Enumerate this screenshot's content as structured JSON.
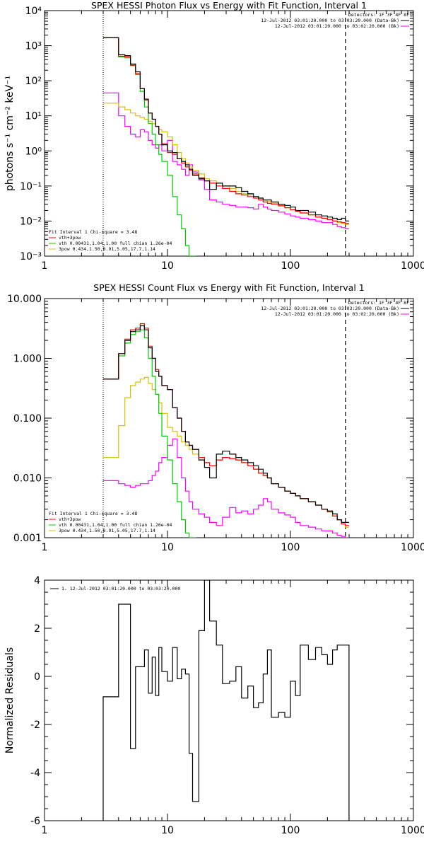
{
  "chart_data": [
    {
      "type": "line",
      "title": "SPEX HESSI Photon Flux vs Energy with Fit Function, Interval 1",
      "ylabel": "photons s⁻¹ cm⁻² keV⁻¹",
      "xlabel": "",
      "xscale": "log",
      "yscale": "log",
      "xlim": [
        1,
        1000
      ],
      "ylim": [
        0.001,
        10000
      ],
      "xticks": [
        "1",
        "10",
        "100",
        "1000"
      ],
      "yticks": [
        "10⁻³",
        "10⁻²",
        "10⁻¹",
        "10⁰",
        "10¹",
        "10²",
        "10³",
        "10⁴"
      ],
      "legend_tr": [
        "Detectors: 1F 3F 4F 8F",
        "12-Jul-2012 03:01:20.000 to 03:03:20.000 (Data-Bk)",
        "12-Jul-2012 03:01:20.000 to 03:02:20.000 (Bk)"
      ],
      "legend_bl": [
        "Fit Interval 1   Chi-square = 3.48",
        "vth+3pow",
        "vth 0.00431,1.04,1.00  full chian 1.26e-04",
        "3pow 0.434,1.50,8.91,5.05,17.7,1.14"
      ],
      "vlines": [
        3.0,
        280
      ],
      "series": [
        {
          "name": "Data-Bk",
          "color": "#000000",
          "x": [
            3,
            3.5,
            4,
            4.5,
            5,
            5.5,
            6,
            6.5,
            7,
            7.5,
            8,
            8.5,
            9,
            10,
            11,
            12,
            13,
            14,
            15,
            16,
            18,
            20,
            22,
            25,
            28,
            32,
            36,
            40,
            45,
            50,
            55,
            60,
            65,
            70,
            80,
            90,
            100,
            110,
            120,
            140,
            160,
            180,
            200,
            220,
            240,
            260,
            280
          ],
          "y": [
            1700,
            1700,
            550,
            520,
            300,
            180,
            60,
            30,
            12,
            8,
            5,
            3,
            1.5,
            1,
            0.9,
            0.6,
            0.5,
            0.4,
            0.3,
            0.2,
            0.16,
            0.14,
            0.08,
            0.12,
            0.1,
            0.1,
            0.09,
            0.07,
            0.06,
            0.05,
            0.045,
            0.04,
            0.04,
            0.035,
            0.03,
            0.028,
            0.025,
            0.02,
            0.02,
            0.018,
            0.015,
            0.014,
            0.013,
            0.012,
            0.011,
            0.012,
            0.01
          ]
        },
        {
          "name": "vth+3pow",
          "color": "#ff0000",
          "x": [
            3,
            3.5,
            4,
            4.5,
            5,
            5.5,
            6,
            6.5,
            7,
            7.5,
            8,
            8.5,
            9,
            10,
            11,
            12,
            13,
            14,
            15,
            16,
            18,
            20,
            22,
            25,
            28,
            32,
            36,
            40,
            45,
            50,
            55,
            60,
            65,
            70,
            80,
            90,
            100,
            110,
            120,
            140,
            160,
            180,
            200,
            220,
            240,
            260,
            280
          ],
          "y": [
            1700,
            1700,
            500,
            480,
            280,
            160,
            60,
            28,
            12,
            8,
            5,
            3,
            1.6,
            0.9,
            0.8,
            0.6,
            0.45,
            0.35,
            0.28,
            0.22,
            0.17,
            0.14,
            0.12,
            0.1,
            0.085,
            0.07,
            0.06,
            0.055,
            0.05,
            0.045,
            0.04,
            0.035,
            0.032,
            0.03,
            0.027,
            0.024,
            0.021,
            0.019,
            0.017,
            0.015,
            0.013,
            0.012,
            0.011,
            0.01,
            0.0095,
            0.009,
            0.0085
          ]
        },
        {
          "name": "vth",
          "color": "#00cc00",
          "x": [
            3,
            3.5,
            4,
            4.5,
            5,
            5.5,
            6,
            6.5,
            7,
            7.5,
            8,
            8.5,
            9,
            10,
            11,
            12,
            13,
            14,
            15,
            16
          ],
          "y": [
            1700,
            1700,
            480,
            450,
            270,
            150,
            50,
            18,
            6,
            3,
            1.5,
            0.8,
            0.5,
            0.2,
            0.05,
            0.015,
            0.006,
            0.002,
            0.001,
            0.001
          ]
        },
        {
          "name": "3pow",
          "color": "#d7c000",
          "x": [
            3,
            3.5,
            4,
            4.5,
            5,
            5.5,
            6,
            6.5,
            7,
            7.5,
            8,
            8.5,
            9,
            10,
            11,
            12,
            13,
            14,
            15,
            16,
            18,
            20,
            22,
            25,
            28,
            32,
            36,
            40,
            45,
            50,
            55,
            60,
            65,
            70,
            80,
            90,
            100,
            110,
            120,
            140,
            160,
            180,
            200,
            220,
            240,
            260,
            280
          ],
          "y": [
            23,
            23,
            18,
            15,
            12,
            10,
            9,
            8,
            7,
            6,
            5,
            4,
            3.5,
            2.5,
            1.5,
            0.9,
            0.6,
            0.45,
            0.35,
            0.28,
            0.22,
            0.16,
            0.14,
            0.12,
            0.1,
            0.085,
            0.07,
            0.06,
            0.055,
            0.05,
            0.045,
            0.04,
            0.036,
            0.032,
            0.028,
            0.024,
            0.021,
            0.019,
            0.017,
            0.015,
            0.013,
            0.012,
            0.011,
            0.01,
            0.009,
            0.0085,
            0.008
          ]
        },
        {
          "name": "Bk",
          "color": "#ff00ff",
          "x": [
            3,
            3.5,
            4,
            4.5,
            5,
            5.5,
            6,
            6.5,
            7,
            7.5,
            8,
            8.5,
            9,
            10,
            11,
            12,
            13,
            14,
            15,
            16,
            18,
            20,
            22,
            25,
            28,
            32,
            36,
            40,
            45,
            50,
            55,
            60,
            65,
            70,
            80,
            90,
            100,
            110,
            120,
            140,
            160,
            180,
            200,
            220,
            240,
            260,
            280
          ],
          "y": [
            45,
            45,
            10,
            5,
            3,
            2.5,
            4,
            3.5,
            2,
            1.5,
            1.2,
            1.5,
            1,
            2,
            0.5,
            0.4,
            0.3,
            0.2,
            0.4,
            0.25,
            0.15,
            0.08,
            0.04,
            0.035,
            0.03,
            0.028,
            0.025,
            0.025,
            0.024,
            0.022,
            0.03,
            0.025,
            0.022,
            0.02,
            0.018,
            0.016,
            0.014,
            0.013,
            0.012,
            0.011,
            0.01,
            0.009,
            0.009,
            0.008,
            0.007,
            0.0065,
            0.006
          ]
        }
      ]
    },
    {
      "type": "line",
      "title": "SPEX HESSI Count Flux vs Energy with Fit Function, Interval 1",
      "ylabel": "",
      "xlabel": "",
      "xscale": "log",
      "yscale": "log",
      "xlim": [
        1,
        1000
      ],
      "ylim": [
        0.001,
        10
      ],
      "xticks": [
        "1",
        "10",
        "100",
        "1000"
      ],
      "yticks": [
        "0.001",
        "0.010",
        "0.100",
        "1.000",
        "10.000"
      ],
      "legend_tr": [
        "Detectors: 1F 3F 4F 8F",
        "12-Jul-2012 03:01:20.000 to 03:03:20.000 (Data-Bk)",
        "12-Jul-2012 03:01:20.000 to 03:02:20.000 (Bk)"
      ],
      "legend_bl": [
        "Fit Interval 1   Chi-square = 3.48",
        "vth+3pow",
        "vth 0.00431,1.04,1.00  full chian 1.26e-04",
        "3pow 0.434,1.50,8.91,5.05,17.7,1.14"
      ],
      "vlines": [
        3.0,
        280
      ],
      "series": [
        {
          "name": "Data-Bk",
          "color": "#000000",
          "x": [
            3,
            3.5,
            4,
            4.5,
            5,
            5.5,
            6,
            6.5,
            7,
            7.5,
            8,
            8.5,
            9,
            10,
            11,
            12,
            13,
            14,
            15,
            16,
            18,
            20,
            22,
            25,
            28,
            32,
            36,
            40,
            45,
            50,
            55,
            60,
            65,
            70,
            80,
            90,
            100,
            110,
            120,
            140,
            160,
            180,
            200,
            220,
            240,
            260,
            280
          ],
          "y": [
            0.45,
            0.45,
            1.2,
            2,
            2.8,
            3,
            3.5,
            3,
            1.5,
            1,
            0.6,
            0.5,
            0.35,
            0.3,
            0.15,
            0.1,
            0.06,
            0.04,
            0.035,
            0.03,
            0.02,
            0.015,
            0.01,
            0.025,
            0.028,
            0.025,
            0.022,
            0.02,
            0.018,
            0.016,
            0.014,
            0.012,
            0.01,
            0.008,
            0.007,
            0.006,
            0.0055,
            0.005,
            0.0045,
            0.004,
            0.0035,
            0.003,
            0.0028,
            0.0025,
            0.002,
            0.0018,
            0.0018
          ]
        },
        {
          "name": "vth+3pow",
          "color": "#ff0000",
          "x": [
            3,
            3.5,
            4,
            4.5,
            5,
            5.5,
            6,
            6.5,
            7,
            7.5,
            8,
            8.5,
            9,
            10,
            11,
            12,
            13,
            14,
            15,
            16,
            18,
            20,
            22,
            25,
            28,
            32,
            36,
            40,
            45,
            50,
            55,
            60,
            65,
            70,
            80,
            90,
            100,
            110,
            120,
            140,
            160,
            180,
            200,
            220,
            240,
            260,
            280
          ],
          "y": [
            0.45,
            0.45,
            1.2,
            2.1,
            3,
            3.2,
            3.8,
            3.2,
            1.6,
            1,
            0.65,
            0.5,
            0.35,
            0.3,
            0.15,
            0.1,
            0.06,
            0.04,
            0.035,
            0.03,
            0.022,
            0.018,
            0.016,
            0.02,
            0.022,
            0.021,
            0.02,
            0.018,
            0.016,
            0.014,
            0.012,
            0.011,
            0.01,
            0.008,
            0.007,
            0.006,
            0.0055,
            0.005,
            0.0045,
            0.004,
            0.0035,
            0.003,
            0.0027,
            0.0023,
            0.002,
            0.0017,
            0.0016
          ]
        },
        {
          "name": "vth",
          "color": "#00cc00",
          "x": [
            3,
            3.5,
            4,
            4.5,
            5,
            5.5,
            6,
            6.5,
            7,
            7.5,
            8,
            8.5,
            9,
            10,
            11,
            12,
            13,
            14,
            15,
            16
          ],
          "y": [
            0.45,
            0.45,
            1.1,
            1.8,
            2.5,
            2.8,
            3,
            2.2,
            1,
            0.5,
            0.25,
            0.12,
            0.05,
            0.02,
            0.008,
            0.004,
            0.002,
            0.0012,
            0.001,
            0.001
          ]
        },
        {
          "name": "3pow",
          "color": "#d7c000",
          "x": [
            3,
            3.5,
            4,
            4.5,
            5,
            5.5,
            6,
            6.5,
            7,
            7.5,
            8,
            8.5,
            9,
            10,
            11,
            12,
            13,
            14,
            15,
            16,
            18,
            20,
            22,
            25,
            28,
            32,
            36,
            40,
            45,
            50,
            55,
            60,
            65,
            70,
            80,
            90,
            100,
            110,
            120,
            140,
            160,
            180,
            200,
            220,
            240,
            260,
            280
          ],
          "y": [
            0.022,
            0.022,
            0.075,
            0.22,
            0.35,
            0.4,
            0.45,
            0.48,
            0.38,
            0.3,
            0.25,
            0.18,
            0.12,
            0.07,
            0.06,
            0.05,
            0.04,
            0.035,
            0.03,
            0.025,
            0.02,
            0.018,
            0.016,
            0.02,
            0.022,
            0.021,
            0.02,
            0.018,
            0.016,
            0.014,
            0.012,
            0.011,
            0.01,
            0.008,
            0.007,
            0.006,
            0.0055,
            0.005,
            0.0045,
            0.004,
            0.0035,
            0.003,
            0.0027,
            0.0023,
            0.002,
            0.0017,
            0.0015
          ]
        },
        {
          "name": "Bk",
          "color": "#ff00ff",
          "x": [
            3,
            3.5,
            4,
            4.5,
            5,
            5.5,
            6,
            6.5,
            7,
            7.5,
            8,
            8.5,
            9,
            10,
            11,
            12,
            13,
            14,
            15,
            16,
            18,
            20,
            22,
            25,
            28,
            32,
            36,
            40,
            45,
            50,
            55,
            60,
            65,
            70,
            80,
            90,
            100,
            110,
            120,
            140,
            160,
            180,
            200,
            220,
            240,
            260,
            280
          ],
          "y": [
            0.009,
            0.009,
            0.008,
            0.0075,
            0.007,
            0.0075,
            0.008,
            0.008,
            0.009,
            0.011,
            0.013,
            0.018,
            0.022,
            0.035,
            0.045,
            0.022,
            0.01,
            0.006,
            0.004,
            0.003,
            0.0025,
            0.0022,
            0.0018,
            0.0016,
            0.0022,
            0.0032,
            0.0026,
            0.0028,
            0.0025,
            0.003,
            0.0035,
            0.0045,
            0.004,
            0.003,
            0.0026,
            0.0024,
            0.0022,
            0.0018,
            0.0016,
            0.0015,
            0.0014,
            0.0013,
            0.0013,
            0.0012,
            0.0011,
            0.00105,
            0.001
          ]
        }
      ]
    },
    {
      "type": "line",
      "title": "",
      "ylabel": "Normalized Residuals",
      "xlabel": "",
      "xscale": "log",
      "yscale": "linear",
      "xlim": [
        1,
        1000
      ],
      "ylim": [
        -6,
        4
      ],
      "xticks": [
        "1",
        "10",
        "100",
        "1000"
      ],
      "yticks": [
        "-6",
        "-4",
        "-2",
        "0",
        "2",
        "4"
      ],
      "legend_tr": [],
      "legend_bl": [],
      "legend_tl": "1. 12-Jul-2012 03:01:20.000 to 03:03:20.000",
      "vlines": [],
      "series": [
        {
          "name": "residuals",
          "color": "#000000",
          "x": [
            3,
            3.5,
            4,
            4.5,
            5,
            5.5,
            6,
            6.5,
            7,
            7.5,
            8,
            8.5,
            9,
            10,
            11,
            12,
            13,
            14,
            15,
            16,
            18,
            20,
            22,
            25,
            28,
            32,
            36,
            40,
            45,
            50,
            55,
            60,
            65,
            70,
            80,
            90,
            100,
            110,
            120,
            140,
            160,
            180,
            200,
            220,
            240,
            260,
            280
          ],
          "y": [
            -0.85,
            -0.85,
            3,
            3,
            -3,
            0.4,
            0.4,
            1.1,
            -0.7,
            0.8,
            -0.8,
            1.2,
            0.2,
            -0.2,
            1.2,
            -0.1,
            0.3,
            0.1,
            -3.2,
            -5.2,
            1.9,
            4,
            2.3,
            1.3,
            -0.3,
            -0.2,
            0.4,
            -0.9,
            -0.4,
            -1.3,
            -1.1,
            0.1,
            1.1,
            -1.7,
            -1.5,
            -1.7,
            -0.2,
            -0.8,
            1.3,
            0.7,
            1.2,
            0.9,
            0.5,
            1.1,
            1.3,
            1.3,
            1.3
          ]
        }
      ]
    }
  ]
}
